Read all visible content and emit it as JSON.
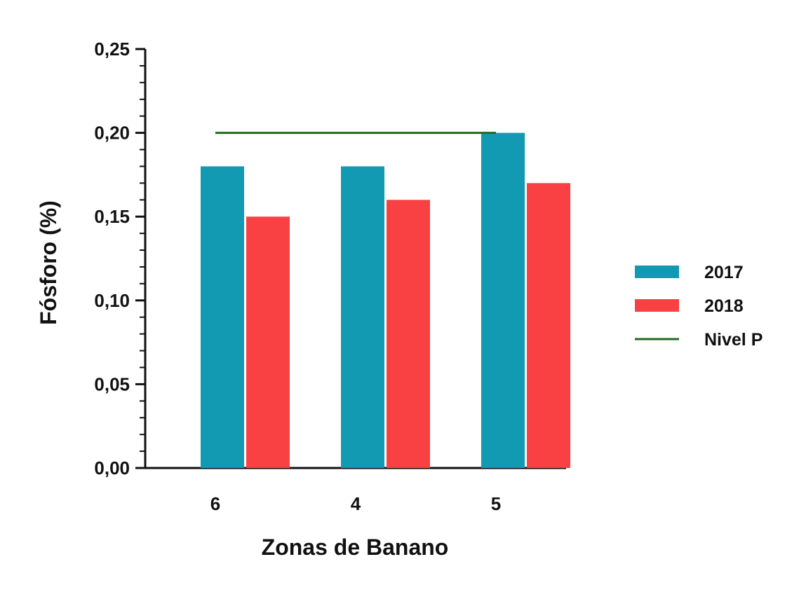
{
  "chart_data": {
    "type": "bar",
    "title": "",
    "xlabel": "Zonas de Banano",
    "ylabel": "Fósforo (%)",
    "categories": [
      "6",
      "4",
      "5"
    ],
    "series": [
      {
        "name": "2017",
        "values": [
          0.18,
          0.18,
          0.2
        ],
        "color": "#129ab3"
      },
      {
        "name": "2018",
        "values": [
          0.15,
          0.16,
          0.17
        ],
        "color": "#f94144"
      }
    ],
    "reference_line": {
      "name": "Nivel P",
      "value": 0.2,
      "color": "#1e6b1e"
    },
    "ylim": [
      0,
      0.25
    ],
    "yticks": [
      "0,00",
      "0,05",
      "0,10",
      "0,15",
      "0,20",
      "0,25"
    ],
    "grid": false,
    "legend_position": "right"
  }
}
